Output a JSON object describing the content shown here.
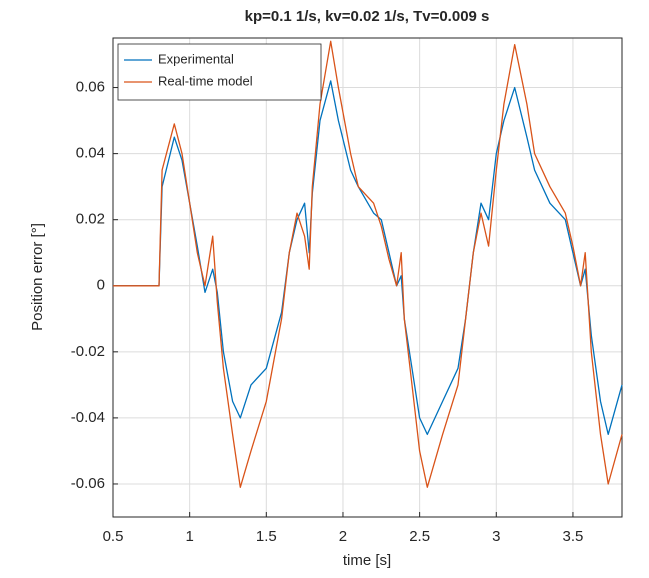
{
  "chart_data": {
    "type": "line",
    "title": "kp=0.1 1/s, kv=0.02 1/s, Tv=0.009 s",
    "xlabel": "time [s]",
    "ylabel": "Position error [°]",
    "x": [
      0.5,
      0.8,
      0.82,
      0.9,
      0.95,
      1.0,
      1.05,
      1.1,
      1.15,
      1.18,
      1.22,
      1.28,
      1.33,
      1.4,
      1.5,
      1.6,
      1.65,
      1.7,
      1.75,
      1.78,
      1.8,
      1.85,
      1.92,
      1.97,
      2.05,
      2.1,
      2.2,
      2.25,
      2.3,
      2.35,
      2.38,
      2.4,
      2.45,
      2.5,
      2.55,
      2.65,
      2.75,
      2.8,
      2.85,
      2.9,
      2.95,
      3.0,
      3.05,
      3.12,
      3.2,
      3.25,
      3.35,
      3.45,
      3.5,
      3.55,
      3.58,
      3.62,
      3.68,
      3.73,
      3.82
    ],
    "series": [
      {
        "name": "Experimental",
        "color": "#0072bd",
        "values": [
          0,
          0,
          0.03,
          0.045,
          0.038,
          0.025,
          0.012,
          -0.002,
          0.005,
          -0.002,
          -0.02,
          -0.035,
          -0.04,
          -0.03,
          -0.025,
          -0.008,
          0.01,
          0.02,
          0.025,
          0.01,
          0.028,
          0.05,
          0.062,
          0.05,
          0.035,
          0.03,
          0.022,
          0.02,
          0.01,
          0,
          0.003,
          -0.01,
          -0.025,
          -0.04,
          -0.045,
          -0.035,
          -0.025,
          -0.01,
          0.01,
          0.025,
          0.02,
          0.04,
          0.05,
          0.06,
          0.045,
          0.035,
          0.025,
          0.02,
          0.01,
          0,
          0.005,
          -0.015,
          -0.035,
          -0.045,
          -0.03
        ]
      },
      {
        "name": "Real-time model",
        "color": "#d95319",
        "values": [
          0,
          0,
          0.035,
          0.049,
          0.04,
          0.025,
          0.01,
          0,
          0.015,
          -0.005,
          -0.025,
          -0.045,
          -0.061,
          -0.05,
          -0.035,
          -0.01,
          0.01,
          0.022,
          0.015,
          0.005,
          0.03,
          0.055,
          0.074,
          0.06,
          0.04,
          0.03,
          0.025,
          0.018,
          0.008,
          0,
          0.01,
          -0.01,
          -0.03,
          -0.05,
          -0.061,
          -0.045,
          -0.03,
          -0.01,
          0.01,
          0.022,
          0.012,
          0.035,
          0.055,
          0.073,
          0.055,
          0.04,
          0.03,
          0.022,
          0.012,
          0,
          0.01,
          -0.02,
          -0.045,
          -0.06,
          -0.045
        ]
      }
    ],
    "xlim": [
      0.5,
      3.82
    ],
    "ylim": [
      -0.07,
      0.075
    ],
    "xticks": [
      0.5,
      1,
      1.5,
      2,
      2.5,
      3,
      3.5
    ],
    "yticks": [
      -0.06,
      -0.04,
      -0.02,
      0,
      0.02,
      0.04,
      0.06
    ],
    "grid": true,
    "legend": "upper left"
  }
}
